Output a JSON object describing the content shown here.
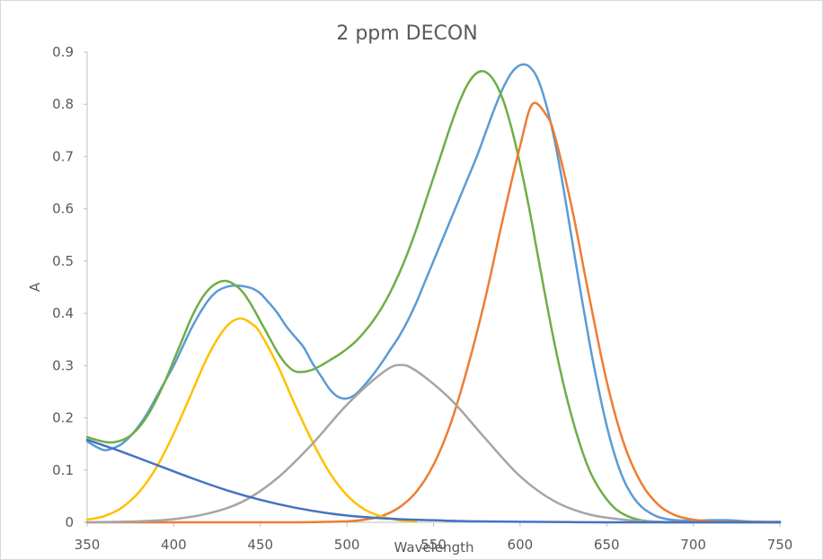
{
  "chart_data": {
    "type": "line",
    "title": "2 ppm DECON",
    "xlabel": "Wavelength",
    "ylabel": "A",
    "xlim": [
      350,
      750
    ],
    "ylim": [
      0,
      0.9
    ],
    "x_ticks": [
      "350",
      "400",
      "450",
      "500",
      "550",
      "600",
      "650",
      "700",
      "750"
    ],
    "y_ticks": [
      "0",
      "0.1",
      "0.2",
      "0.3",
      "0.4",
      "0.5",
      "0.6",
      "0.7",
      "0.8",
      "0.9"
    ],
    "grid": false,
    "legend": "none",
    "series": [
      {
        "color": "#5b9bd5",
        "x": [
          350,
          355,
          360,
          365,
          370,
          375,
          380,
          385,
          390,
          395,
          400,
          405,
          410,
          415,
          420,
          425,
          430,
          435,
          440,
          445,
          450,
          455,
          460,
          465,
          470,
          475,
          480,
          485,
          490,
          495,
          500,
          505,
          510,
          515,
          520,
          525,
          530,
          535,
          540,
          545,
          550,
          555,
          560,
          565,
          570,
          575,
          580,
          585,
          590,
          595,
          600,
          605,
          610,
          615,
          620,
          625,
          630,
          635,
          640,
          645,
          650,
          655,
          660,
          665,
          670,
          675,
          680,
          685,
          690,
          695,
          700,
          710,
          720,
          730,
          740,
          750
        ],
        "y": [
          0.155,
          0.145,
          0.138,
          0.142,
          0.15,
          0.165,
          0.185,
          0.21,
          0.24,
          0.27,
          0.3,
          0.335,
          0.37,
          0.4,
          0.425,
          0.442,
          0.45,
          0.453,
          0.452,
          0.448,
          0.438,
          0.42,
          0.4,
          0.375,
          0.355,
          0.335,
          0.305,
          0.28,
          0.255,
          0.24,
          0.237,
          0.245,
          0.262,
          0.282,
          0.305,
          0.33,
          0.355,
          0.385,
          0.42,
          0.46,
          0.5,
          0.54,
          0.58,
          0.62,
          0.66,
          0.7,
          0.745,
          0.79,
          0.83,
          0.86,
          0.875,
          0.873,
          0.85,
          0.8,
          0.73,
          0.64,
          0.54,
          0.44,
          0.345,
          0.26,
          0.185,
          0.125,
          0.08,
          0.05,
          0.03,
          0.018,
          0.01,
          0.006,
          0.004,
          0.003,
          0.003,
          0.004,
          0.004,
          0.002,
          0.001,
          0.001
        ]
      },
      {
        "color": "#70ad47",
        "x": [
          350,
          355,
          360,
          365,
          370,
          375,
          380,
          385,
          390,
          395,
          400,
          405,
          410,
          415,
          420,
          425,
          430,
          435,
          440,
          445,
          450,
          455,
          460,
          465,
          470,
          475,
          480,
          485,
          490,
          495,
          500,
          505,
          510,
          515,
          520,
          525,
          530,
          535,
          540,
          545,
          550,
          555,
          560,
          565,
          570,
          575,
          580,
          585,
          590,
          595,
          600,
          605,
          610,
          615,
          620,
          625,
          630,
          635,
          640,
          645,
          650,
          655,
          660,
          665,
          670,
          675,
          680,
          685,
          690,
          695,
          700,
          710,
          720,
          730,
          740,
          750
        ],
        "y": [
          0.163,
          0.158,
          0.154,
          0.153,
          0.157,
          0.166,
          0.182,
          0.205,
          0.235,
          0.27,
          0.31,
          0.35,
          0.39,
          0.422,
          0.445,
          0.458,
          0.462,
          0.455,
          0.44,
          0.415,
          0.385,
          0.355,
          0.325,
          0.302,
          0.289,
          0.288,
          0.292,
          0.3,
          0.31,
          0.32,
          0.332,
          0.346,
          0.364,
          0.385,
          0.41,
          0.44,
          0.475,
          0.515,
          0.56,
          0.61,
          0.66,
          0.71,
          0.76,
          0.805,
          0.84,
          0.86,
          0.862,
          0.845,
          0.81,
          0.755,
          0.685,
          0.605,
          0.515,
          0.425,
          0.34,
          0.265,
          0.2,
          0.145,
          0.1,
          0.068,
          0.044,
          0.026,
          0.015,
          0.008,
          0.004,
          0.002,
          0.001,
          0.0,
          0.0,
          0.0,
          0.0,
          0.0,
          0.0,
          0.0,
          0.0,
          0.0
        ]
      },
      {
        "color": "#ed7d31",
        "x": [
          350,
          420,
          470,
          500,
          510,
          520,
          530,
          540,
          550,
          560,
          570,
          580,
          590,
          600,
          607,
          615,
          620,
          630,
          640,
          650,
          660,
          670,
          680,
          690,
          700,
          710,
          720,
          750
        ],
        "y": [
          0.0,
          0.0,
          0.0,
          0.002,
          0.005,
          0.012,
          0.028,
          0.058,
          0.11,
          0.19,
          0.3,
          0.43,
          0.58,
          0.72,
          0.8,
          0.78,
          0.74,
          0.6,
          0.43,
          0.27,
          0.15,
          0.075,
          0.033,
          0.013,
          0.005,
          0.002,
          0.001,
          0.0
        ]
      },
      {
        "color": "#ffc000",
        "x": [
          350,
          360,
          370,
          380,
          390,
          400,
          410,
          420,
          430,
          438,
          445,
          450,
          460,
          470,
          480,
          490,
          500,
          510,
          520,
          530,
          540
        ],
        "y": [
          0.005,
          0.012,
          0.028,
          0.058,
          0.105,
          0.17,
          0.245,
          0.32,
          0.373,
          0.39,
          0.38,
          0.362,
          0.3,
          0.225,
          0.155,
          0.095,
          0.052,
          0.025,
          0.011,
          0.004,
          0.001
        ]
      },
      {
        "color": "#a5a5a5",
        "x": [
          350,
          380,
          400,
          420,
          440,
          460,
          480,
          500,
          520,
          530,
          540,
          560,
          580,
          600,
          620,
          640,
          660,
          680,
          700
        ],
        "y": [
          0.0,
          0.002,
          0.006,
          0.017,
          0.04,
          0.085,
          0.15,
          0.225,
          0.285,
          0.301,
          0.29,
          0.235,
          0.16,
          0.088,
          0.04,
          0.015,
          0.005,
          0.001,
          0.0
        ]
      },
      {
        "color": "#4472c4",
        "x": [
          350,
          370,
          390,
          410,
          430,
          450,
          470,
          490,
          510,
          530,
          550,
          570,
          600,
          650,
          700,
          750
        ],
        "y": [
          0.158,
          0.135,
          0.11,
          0.085,
          0.062,
          0.043,
          0.028,
          0.017,
          0.01,
          0.006,
          0.004,
          0.002,
          0.001,
          0.0,
          0.0,
          0.0
        ]
      }
    ]
  }
}
